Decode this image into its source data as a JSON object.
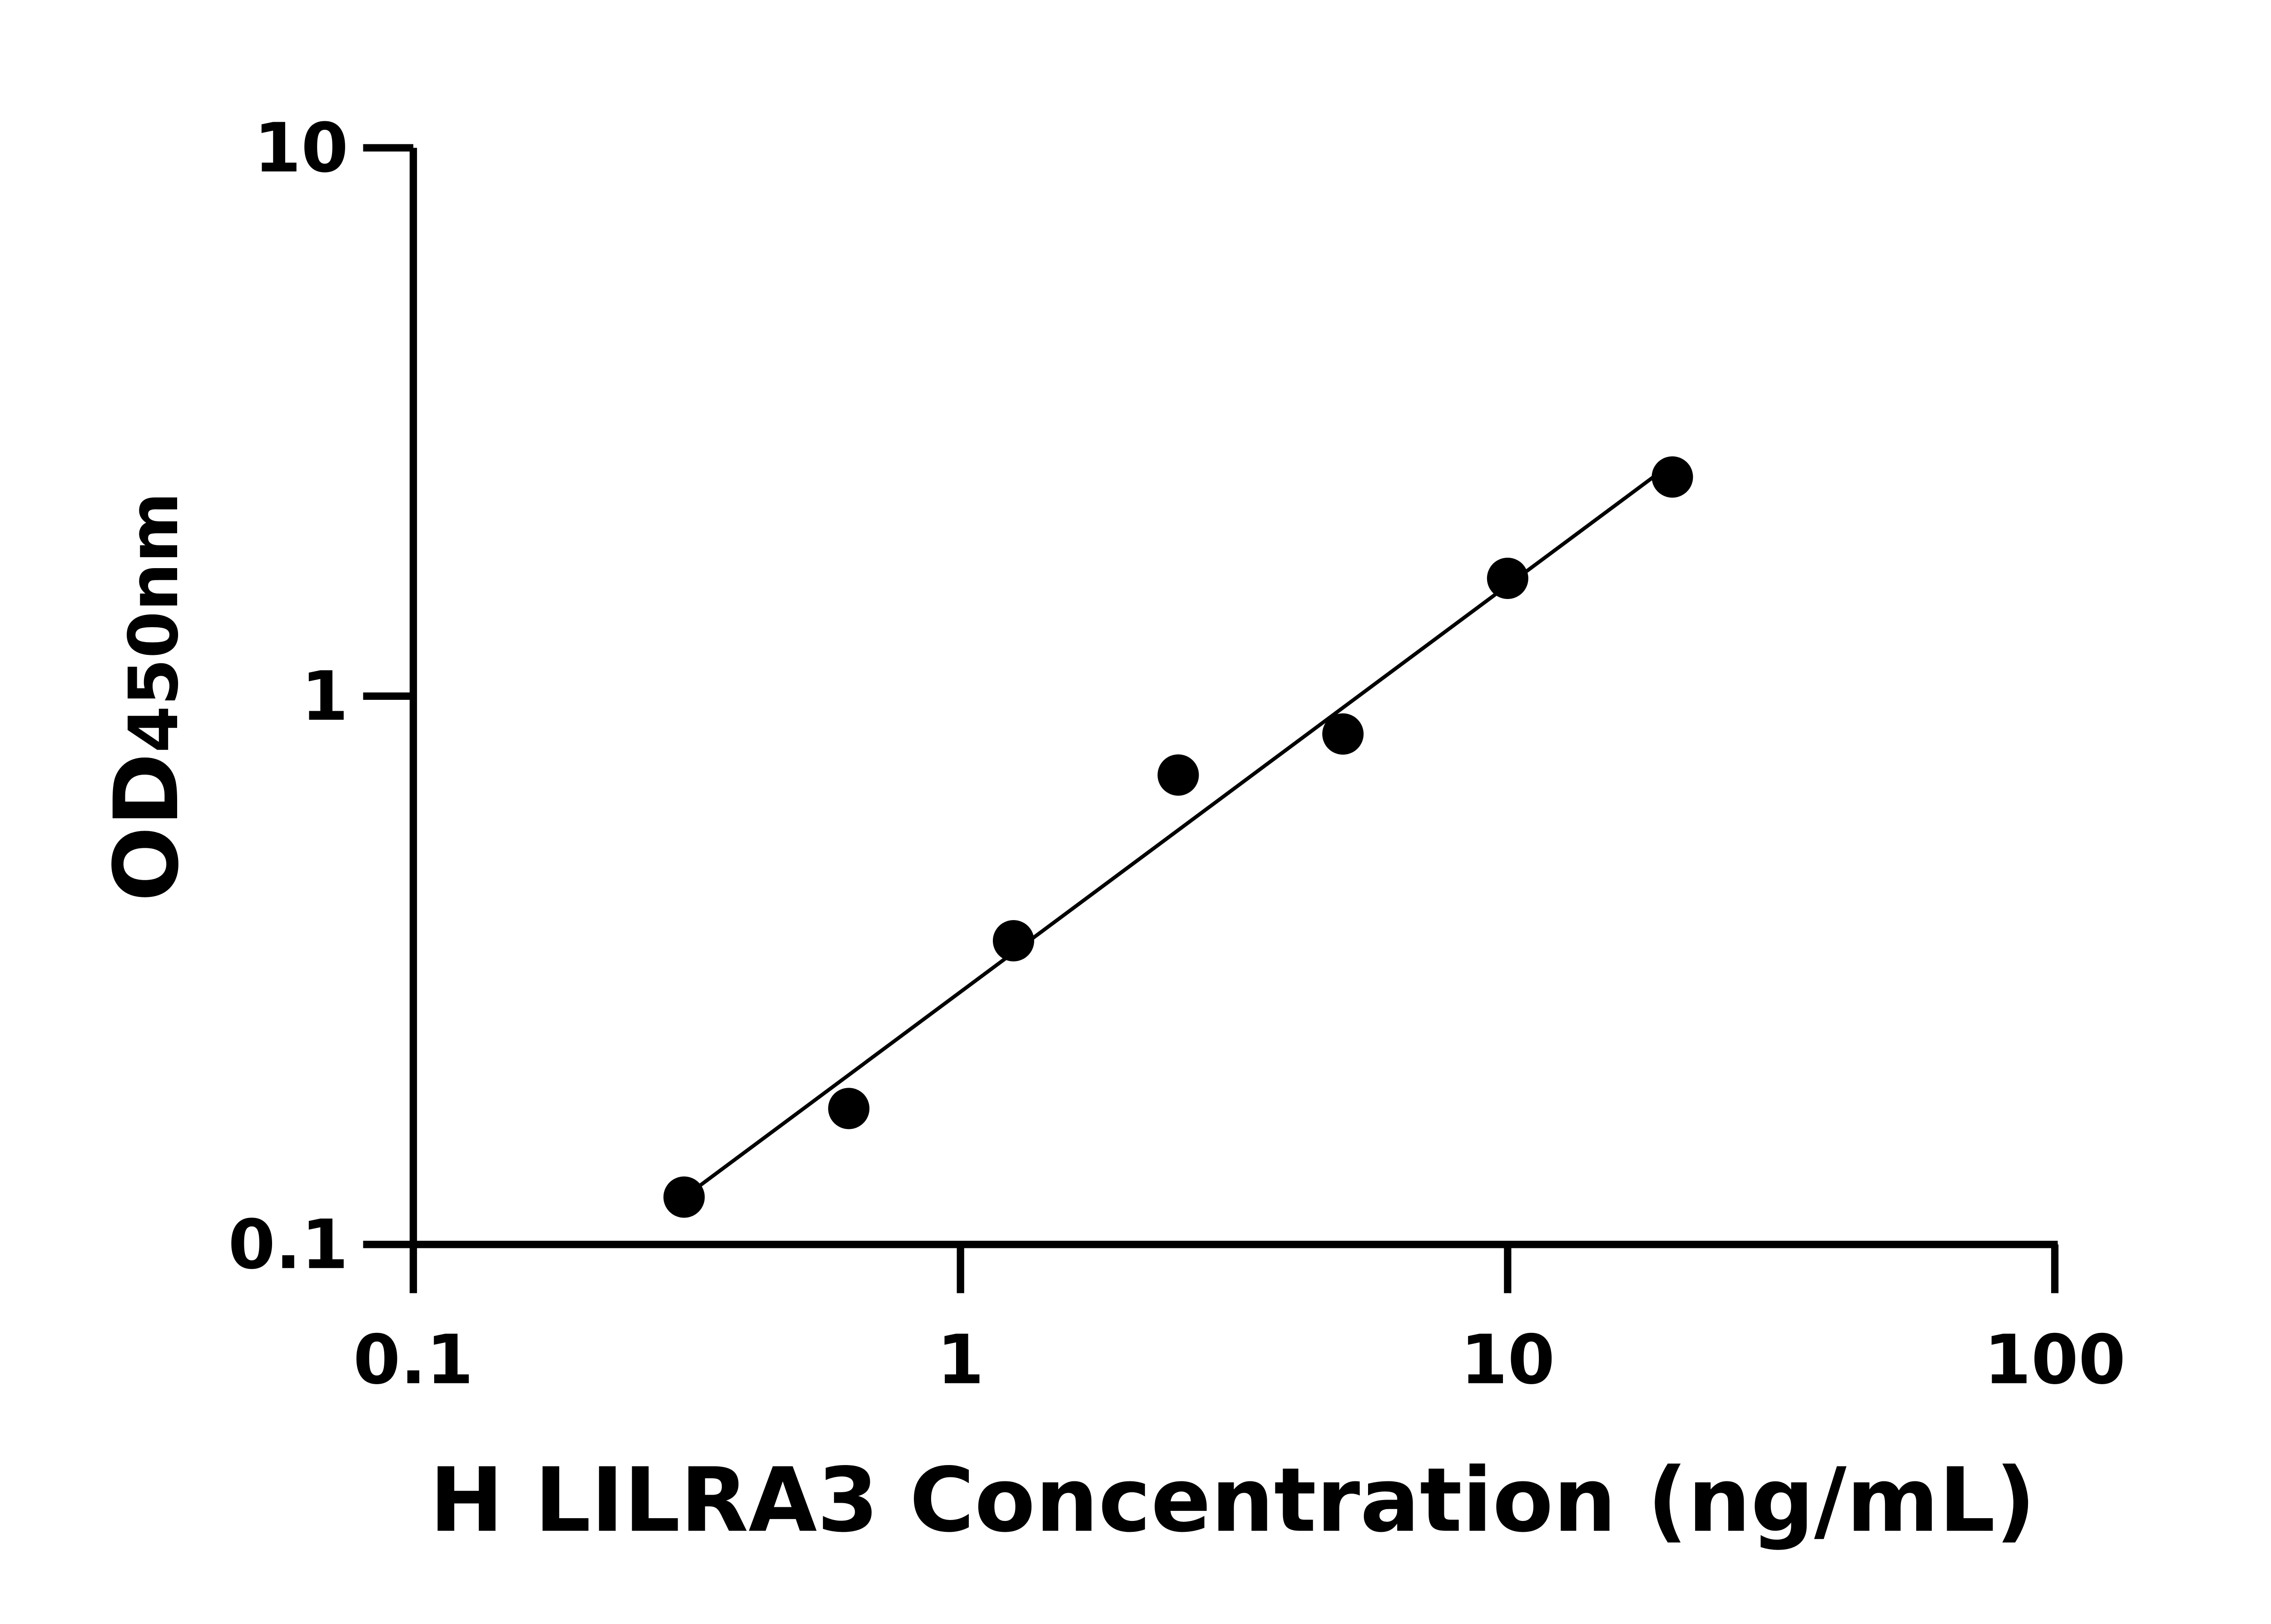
{
  "chart_data": {
    "type": "scatter",
    "title": "",
    "xlabel": "H LILRA3 Concentration (ng/mL)",
    "ylabel": {
      "main": "OD",
      "subscript": "450nm"
    },
    "x_scale": "log",
    "y_scale": "log",
    "xlim": [
      0.1,
      100
    ],
    "ylim": [
      0.1,
      10
    ],
    "x_ticks": [
      "0.1",
      "1",
      "10",
      "100"
    ],
    "y_ticks": [
      "0.1",
      "1",
      "10"
    ],
    "x_tick_values": [
      0.1,
      1,
      10,
      100
    ],
    "y_tick_values": [
      0.1,
      1,
      10
    ],
    "grid": false,
    "points": [
      {
        "x": 0.3125,
        "y": 0.122
      },
      {
        "x": 0.625,
        "y": 0.177
      },
      {
        "x": 1.25,
        "y": 0.358
      },
      {
        "x": 2.5,
        "y": 0.718
      },
      {
        "x": 5,
        "y": 0.853
      },
      {
        "x": 10,
        "y": 1.64
      },
      {
        "x": 20,
        "y": 2.51
      }
    ],
    "fit_line": "log-log linear fit",
    "marker_color": "#000000",
    "line_color": "#000000"
  }
}
